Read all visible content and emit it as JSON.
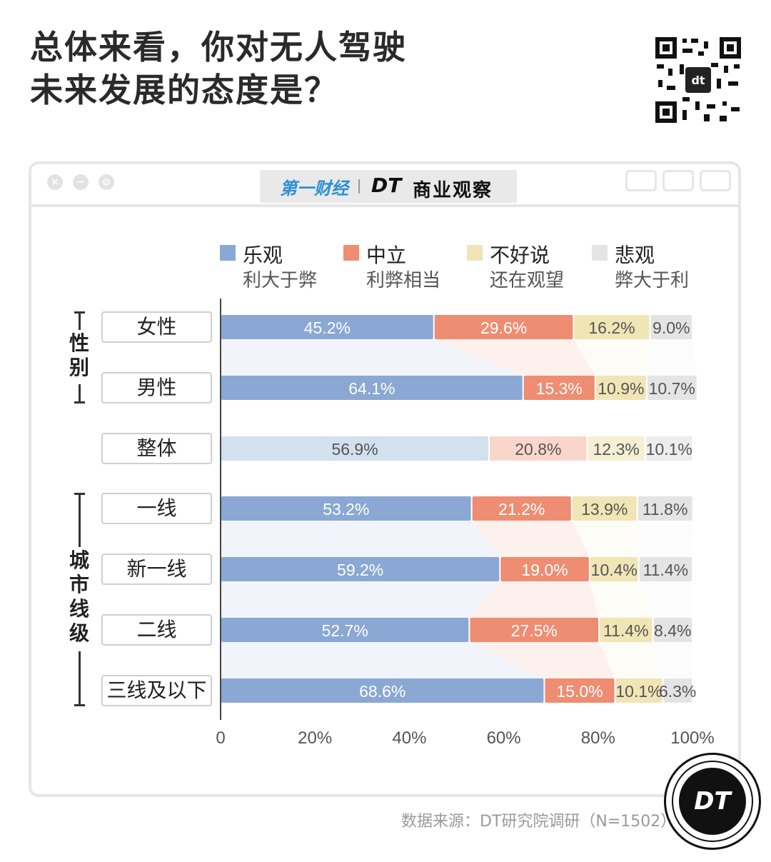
{
  "title": {
    "line1": "总体来看，你对无人驾驶",
    "line2": "未来发展的态度是？"
  },
  "logos": {
    "yicai": "第一财经",
    "dt": "DT",
    "biz": "商业观察",
    "badge": "DT"
  },
  "legend": [
    {
      "label": "乐观",
      "sub": "利大于弊",
      "color": "#8aa8d3"
    },
    {
      "label": "中立",
      "sub": "利弊相当",
      "color": "#ee8d72"
    },
    {
      "label": "不好说",
      "sub": "还在观望",
      "color": "#f0e5b5"
    },
    {
      "label": "悲观",
      "sub": "弊大于利",
      "color": "#e4e4e4"
    }
  ],
  "groups": {
    "gender": "性别",
    "city": "城市线级"
  },
  "source": "数据来源：DT研究院调研（N=1502）",
  "chart_data": {
    "type": "bar",
    "orientation": "horizontal",
    "stacked": true,
    "categories": [
      "女性",
      "男性",
      "整体",
      "一线",
      "新一线",
      "二线",
      "三线及以下"
    ],
    "series": [
      {
        "name": "乐观",
        "values": [
          45.2,
          64.1,
          56.9,
          53.2,
          59.2,
          52.7,
          68.6
        ],
        "color": "#8aa8d3",
        "highlight_color": "#d3e0ee"
      },
      {
        "name": "中立",
        "values": [
          29.6,
          15.3,
          20.8,
          21.2,
          19.0,
          27.5,
          15.0
        ],
        "color": "#ee8d72",
        "highlight_color": "#f8d6cb"
      },
      {
        "name": "不好说",
        "values": [
          16.2,
          10.9,
          12.3,
          13.9,
          10.4,
          11.4,
          10.1
        ],
        "color": "#f0e5b5",
        "highlight_color": "#f6efd3"
      },
      {
        "name": "悲观",
        "values": [
          9.0,
          10.7,
          10.1,
          11.8,
          11.4,
          8.4,
          6.3
        ],
        "color": "#e4e4e4",
        "highlight_color": "#ededed"
      }
    ],
    "labels": [
      [
        "45.2%",
        "29.6%",
        "16.2%",
        "9.0%"
      ],
      [
        "64.1%",
        "15.3%",
        "10.9%",
        "10.7%"
      ],
      [
        "56.9%",
        "20.8%",
        "12.3%",
        "10.1%"
      ],
      [
        "53.2%",
        "21.2%",
        "13.9%",
        "11.8%"
      ],
      [
        "59.2%",
        "19.0%",
        "10.4%",
        "11.4%"
      ],
      [
        "52.7%",
        "27.5%",
        "11.4%",
        "8.4%"
      ],
      [
        "68.6%",
        "15.0%",
        "10.1%",
        "6.3%"
      ]
    ],
    "highlight_category": "整体",
    "xlim": [
      0,
      100
    ],
    "x_ticks": [
      "0",
      "20%",
      "40%",
      "60%",
      "80%",
      "100%"
    ],
    "grid": false,
    "legend_position": "top"
  }
}
